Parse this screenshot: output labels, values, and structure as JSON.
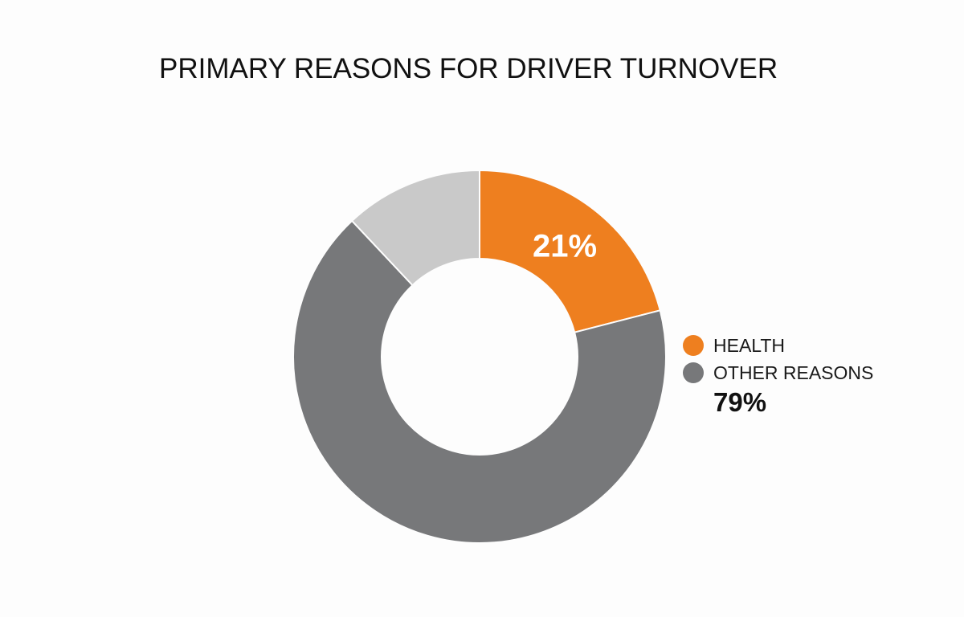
{
  "chart_data": {
    "type": "pie",
    "title": "PRIMARY REASONS FOR DRIVER TURNOVER",
    "donut": true,
    "slices": [
      {
        "name": "HEALTH",
        "value": 21,
        "color": "#ee7f1f",
        "label": "21%"
      },
      {
        "name": "OTHER REASONS",
        "value": 79,
        "color": "#77787a",
        "label": "79%",
        "subslices": [
          {
            "value": 67,
            "color": "#77787a"
          },
          {
            "value": 12,
            "color": "#c9c9c9"
          }
        ]
      }
    ],
    "legend": {
      "placement": "right",
      "items": [
        {
          "label": "HEALTH",
          "color": "#ee7f1f"
        },
        {
          "label": "OTHER REASONS",
          "color": "#77787a"
        }
      ],
      "other_value": "79%"
    }
  }
}
